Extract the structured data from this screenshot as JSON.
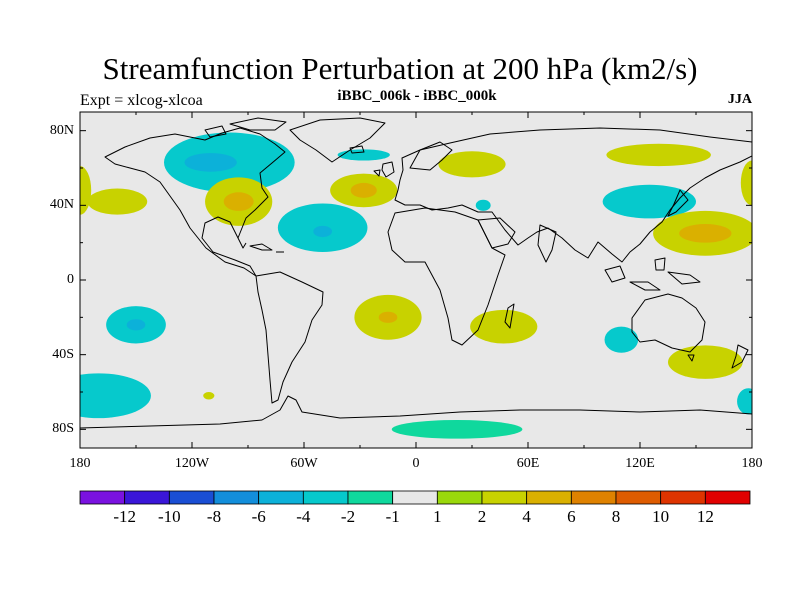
{
  "chart_data": {
    "type": "heatmap",
    "title": "Streamfunction Perturbation at 200 hPa (km2/s)",
    "left_subtitle": "Expt = xlcog-xlcoa",
    "center_subtitle": "iBBC_006k - iBBC_000k",
    "right_subtitle": "JJA",
    "x_ticks": [
      {
        "lon": -180,
        "label": "180"
      },
      {
        "lon": -120,
        "label": "120W"
      },
      {
        "lon": -60,
        "label": "60W"
      },
      {
        "lon": 0,
        "label": "0"
      },
      {
        "lon": 60,
        "label": "60E"
      },
      {
        "lon": 120,
        "label": "120E"
      },
      {
        "lon": 180,
        "label": "180"
      }
    ],
    "y_ticks": [
      {
        "lat": 80,
        "label": "80N"
      },
      {
        "lat": 40,
        "label": "40N"
      },
      {
        "lat": 0,
        "label": "0"
      },
      {
        "lat": -40,
        "label": "40S"
      },
      {
        "lat": -80,
        "label": "80S"
      }
    ],
    "lon_range": [
      -180,
      180
    ],
    "lat_range": [
      -90,
      90
    ],
    "colorbar": {
      "colors": [
        "#7a12e0",
        "#3a16d8",
        "#1a4ed4",
        "#138edb",
        "#0cb1d9",
        "#06c9cc",
        "#0fd89d",
        "#e8e8e8",
        "#9ad80b",
        "#c8d200",
        "#dab000",
        "#df8200",
        "#de5c00",
        "#de3400",
        "#e10000"
      ],
      "labels": [
        "-12",
        "-10",
        "-8",
        "-6",
        "-4",
        "-2",
        "-1",
        "1",
        "2",
        "4",
        "6",
        "8",
        "10",
        "12"
      ]
    },
    "anomalies": [
      {
        "lon": -100,
        "lat": 63,
        "rlon": 35,
        "rlat": 16,
        "level": "-2"
      },
      {
        "lon": -110,
        "lat": 63,
        "rlon": 14,
        "rlat": 5,
        "level": "-4"
      },
      {
        "lon": -95,
        "lat": 42,
        "rlon": 18,
        "rlat": 13,
        "level": "2"
      },
      {
        "lon": -95,
        "lat": 42,
        "rlon": 8,
        "rlat": 5,
        "level": "4"
      },
      {
        "lon": -50,
        "lat": 28,
        "rlon": 24,
        "rlat": 13,
        "level": "-2"
      },
      {
        "lon": -50,
        "lat": 26,
        "rlon": 5,
        "rlat": 3,
        "level": "-4"
      },
      {
        "lon": -28,
        "lat": 48,
        "rlon": 18,
        "rlat": 9,
        "level": "2"
      },
      {
        "lon": -28,
        "lat": 48,
        "rlon": 7,
        "rlat": 4,
        "level": "4"
      },
      {
        "lon": -28,
        "lat": 67,
        "rlon": 14,
        "rlat": 3,
        "level": "-2"
      },
      {
        "lon": 30,
        "lat": 62,
        "rlon": 18,
        "rlat": 7,
        "level": "2"
      },
      {
        "lon": 36,
        "lat": 40,
        "rlon": 4,
        "rlat": 3,
        "level": "-2"
      },
      {
        "lon": 130,
        "lat": 67,
        "rlon": 28,
        "rlat": 6,
        "level": "2"
      },
      {
        "lon": 125,
        "lat": 42,
        "rlon": 25,
        "rlat": 9,
        "level": "-2"
      },
      {
        "lon": 155,
        "lat": 25,
        "rlon": 28,
        "rlat": 12,
        "level": "2"
      },
      {
        "lon": 155,
        "lat": 25,
        "rlon": 14,
        "rlat": 5,
        "level": "4"
      },
      {
        "lon": 180,
        "lat": 52,
        "rlon": 6,
        "rlat": 12,
        "level": "2"
      },
      {
        "lon": -180,
        "lat": 48,
        "rlon": 6,
        "rlat": 13,
        "level": "2"
      },
      {
        "lon": -160,
        "lat": 42,
        "rlon": 16,
        "rlat": 7,
        "level": "2"
      },
      {
        "lon": -150,
        "lat": -24,
        "rlon": 16,
        "rlat": 10,
        "level": "-2"
      },
      {
        "lon": -150,
        "lat": -24,
        "rlon": 5,
        "rlat": 3,
        "level": "-4"
      },
      {
        "lon": -15,
        "lat": -20,
        "rlon": 18,
        "rlat": 12,
        "level": "2"
      },
      {
        "lon": -15,
        "lat": -20,
        "rlon": 5,
        "rlat": 3,
        "level": "4"
      },
      {
        "lon": 47,
        "lat": -25,
        "rlon": 18,
        "rlat": 9,
        "level": "2"
      },
      {
        "lon": 110,
        "lat": -32,
        "rlon": 9,
        "rlat": 7,
        "level": "-2"
      },
      {
        "lon": 155,
        "lat": -44,
        "rlon": 20,
        "rlat": 9,
        "level": "2"
      },
      {
        "lon": -170,
        "lat": -62,
        "rlon": 28,
        "rlat": 12,
        "level": "-2"
      },
      {
        "lon": 178,
        "lat": -65,
        "rlon": 6,
        "rlat": 7,
        "level": "-2"
      },
      {
        "lon": -111,
        "lat": -62,
        "rlon": 3,
        "rlat": 2,
        "level": "2"
      },
      {
        "lon": 22,
        "lat": -80,
        "rlon": 35,
        "rlat": 5,
        "level": "-1"
      }
    ]
  }
}
